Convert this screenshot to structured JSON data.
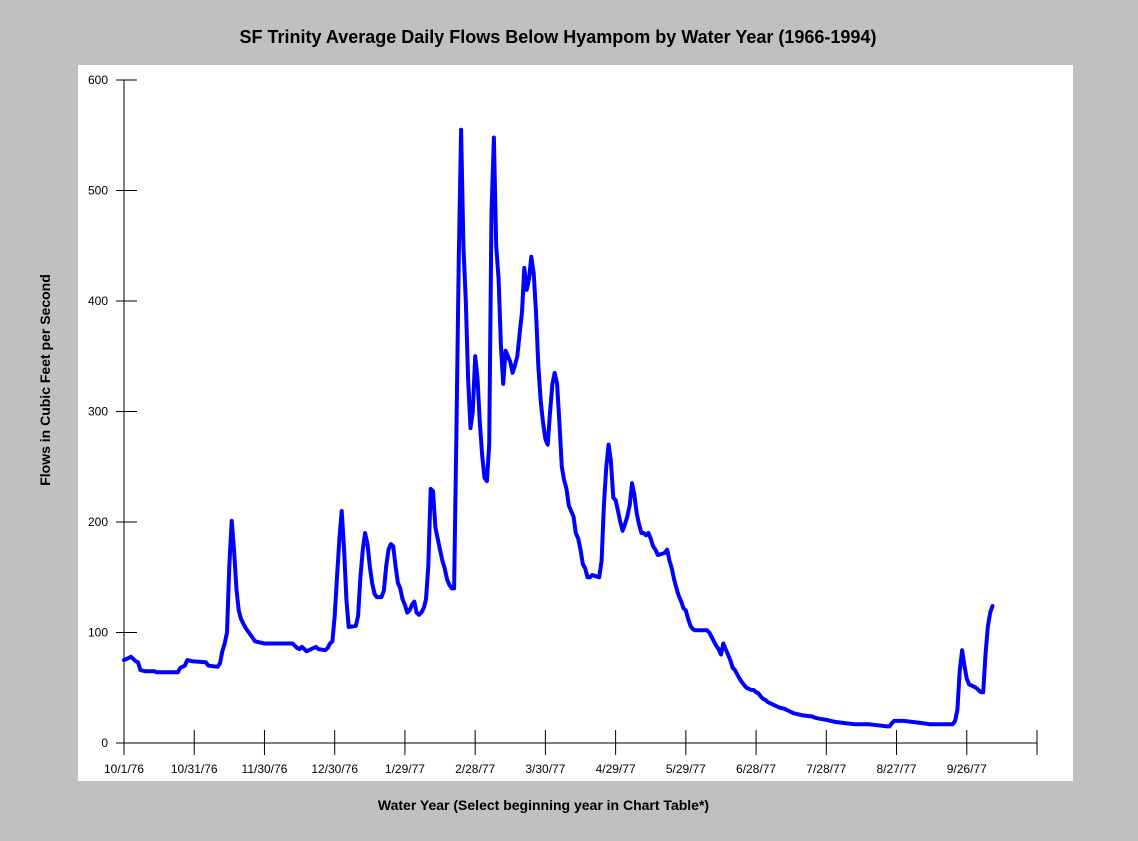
{
  "chart_data": {
    "type": "line",
    "title": "SF Trinity Average Daily Flows Below Hyampom by Water Year (1966-1994)",
    "xlabel": "Water Year (Select beginning year in Chart Table*)",
    "ylabel": "Flows in Cubic Feet per Second",
    "ylim": [
      0,
      600
    ],
    "xlim": [
      0,
      390
    ],
    "yticks": [
      0,
      100,
      200,
      300,
      400,
      500,
      600
    ],
    "xticks": [
      {
        "day": 0,
        "label": "10/1/76"
      },
      {
        "day": 30,
        "label": "10/31/76"
      },
      {
        "day": 60,
        "label": "11/30/76"
      },
      {
        "day": 90,
        "label": "12/30/76"
      },
      {
        "day": 120,
        "label": "1/29/77"
      },
      {
        "day": 150,
        "label": "2/28/77"
      },
      {
        "day": 180,
        "label": "3/30/77"
      },
      {
        "day": 210,
        "label": "4/29/77"
      },
      {
        "day": 240,
        "label": "5/29/77"
      },
      {
        "day": 270,
        "label": "6/28/77"
      },
      {
        "day": 300,
        "label": "7/28/77"
      },
      {
        "day": 330,
        "label": "8/27/77"
      },
      {
        "day": 360,
        "label": "9/26/77"
      },
      {
        "day": 390,
        "label": ""
      }
    ],
    "grid": false,
    "series": [
      {
        "color": "#0000ff",
        "points": [
          [
            0,
            75
          ],
          [
            2,
            77
          ],
          [
            3,
            78
          ],
          [
            5,
            74
          ],
          [
            6,
            73
          ],
          [
            7,
            66
          ],
          [
            9,
            65
          ],
          [
            13,
            65
          ],
          [
            14,
            64
          ],
          [
            16,
            64
          ],
          [
            23,
            64
          ],
          [
            24,
            68
          ],
          [
            26,
            70
          ],
          [
            27,
            75
          ],
          [
            29,
            74
          ],
          [
            35,
            73
          ],
          [
            36,
            70
          ],
          [
            40,
            69
          ],
          [
            41,
            72
          ],
          [
            42,
            83
          ],
          [
            43,
            90
          ],
          [
            44,
            100
          ],
          [
            45,
            160
          ],
          [
            46,
            201
          ],
          [
            47,
            175
          ],
          [
            48,
            140
          ],
          [
            49,
            120
          ],
          [
            50,
            112
          ],
          [
            51,
            108
          ],
          [
            52,
            104
          ],
          [
            54,
            98
          ],
          [
            55,
            95
          ],
          [
            56,
            92
          ],
          [
            58,
            91
          ],
          [
            60,
            90
          ],
          [
            64,
            90
          ],
          [
            72,
            90
          ],
          [
            73,
            88
          ],
          [
            74,
            86
          ],
          [
            75,
            85
          ],
          [
            76,
            87
          ],
          [
            77,
            85
          ],
          [
            78,
            83
          ],
          [
            79,
            84
          ],
          [
            81,
            86
          ],
          [
            82,
            87
          ],
          [
            83,
            85
          ],
          [
            86,
            84
          ],
          [
            87,
            86
          ],
          [
            88,
            90
          ],
          [
            89,
            92
          ],
          [
            90,
            115
          ],
          [
            91,
            150
          ],
          [
            92,
            185
          ],
          [
            93,
            210
          ],
          [
            94,
            175
          ],
          [
            95,
            130
          ],
          [
            96,
            105
          ],
          [
            99,
            106
          ],
          [
            100,
            115
          ],
          [
            101,
            150
          ],
          [
            102,
            175
          ],
          [
            103,
            190
          ],
          [
            104,
            180
          ],
          [
            105,
            160
          ],
          [
            106,
            145
          ],
          [
            107,
            135
          ],
          [
            108,
            132
          ],
          [
            110,
            132
          ],
          [
            111,
            138
          ],
          [
            112,
            160
          ],
          [
            113,
            175
          ],
          [
            114,
            180
          ],
          [
            115,
            178
          ],
          [
            116,
            160
          ],
          [
            117,
            145
          ],
          [
            118,
            140
          ],
          [
            119,
            130
          ],
          [
            120,
            125
          ],
          [
            121,
            118
          ],
          [
            122,
            120
          ],
          [
            123,
            125
          ],
          [
            124,
            128
          ],
          [
            125,
            118
          ],
          [
            126,
            116
          ],
          [
            127,
            118
          ],
          [
            128,
            122
          ],
          [
            129,
            130
          ],
          [
            130,
            160
          ],
          [
            131,
            230
          ],
          [
            132,
            228
          ],
          [
            133,
            195
          ],
          [
            134,
            185
          ],
          [
            135,
            175
          ],
          [
            136,
            165
          ],
          [
            137,
            158
          ],
          [
            138,
            148
          ],
          [
            139,
            143
          ],
          [
            140,
            140
          ],
          [
            141,
            140
          ],
          [
            142,
            280
          ],
          [
            143,
            440
          ],
          [
            144,
            555
          ],
          [
            145,
            450
          ],
          [
            146,
            400
          ],
          [
            147,
            330
          ],
          [
            148,
            285
          ],
          [
            149,
            300
          ],
          [
            150,
            350
          ],
          [
            151,
            330
          ],
          [
            152,
            290
          ],
          [
            153,
            260
          ],
          [
            154,
            240
          ],
          [
            155,
            237
          ],
          [
            156,
            270
          ],
          [
            157,
            480
          ],
          [
            158,
            548
          ],
          [
            159,
            450
          ],
          [
            160,
            420
          ],
          [
            161,
            360
          ],
          [
            162,
            325
          ],
          [
            163,
            355
          ],
          [
            164,
            350
          ],
          [
            165,
            345
          ],
          [
            166,
            335
          ],
          [
            167,
            342
          ],
          [
            168,
            350
          ],
          [
            169,
            370
          ],
          [
            170,
            390
          ],
          [
            171,
            430
          ],
          [
            172,
            410
          ],
          [
            173,
            420
          ],
          [
            174,
            440
          ],
          [
            175,
            425
          ],
          [
            176,
            390
          ],
          [
            177,
            340
          ],
          [
            178,
            310
          ],
          [
            179,
            290
          ],
          [
            180,
            275
          ],
          [
            181,
            270
          ],
          [
            182,
            300
          ],
          [
            183,
            325
          ],
          [
            184,
            335
          ],
          [
            185,
            325
          ],
          [
            186,
            290
          ],
          [
            187,
            250
          ],
          [
            188,
            238
          ],
          [
            189,
            230
          ],
          [
            190,
            215
          ],
          [
            191,
            210
          ],
          [
            192,
            205
          ],
          [
            193,
            190
          ],
          [
            194,
            185
          ],
          [
            195,
            175
          ],
          [
            196,
            162
          ],
          [
            197,
            158
          ],
          [
            198,
            150
          ],
          [
            199,
            150
          ],
          [
            200,
            152
          ],
          [
            203,
            150
          ],
          [
            204,
            165
          ],
          [
            205,
            215
          ],
          [
            206,
            250
          ],
          [
            207,
            270
          ],
          [
            208,
            255
          ],
          [
            209,
            222
          ],
          [
            210,
            220
          ],
          [
            211,
            210
          ],
          [
            212,
            200
          ],
          [
            213,
            192
          ],
          [
            214,
            198
          ],
          [
            215,
            205
          ],
          [
            216,
            215
          ],
          [
            217,
            235
          ],
          [
            218,
            225
          ],
          [
            219,
            208
          ],
          [
            220,
            198
          ],
          [
            221,
            190
          ],
          [
            222,
            190
          ],
          [
            223,
            188
          ],
          [
            224,
            190
          ],
          [
            225,
            185
          ],
          [
            226,
            178
          ],
          [
            227,
            175
          ],
          [
            228,
            170
          ],
          [
            231,
            172
          ],
          [
            232,
            175
          ],
          [
            233,
            165
          ],
          [
            234,
            158
          ],
          [
            235,
            148
          ],
          [
            236,
            140
          ],
          [
            237,
            133
          ],
          [
            238,
            128
          ],
          [
            239,
            122
          ],
          [
            240,
            120
          ],
          [
            241,
            112
          ],
          [
            242,
            106
          ],
          [
            243,
            103
          ],
          [
            244,
            102
          ],
          [
            249,
            102
          ],
          [
            250,
            100
          ],
          [
            251,
            96
          ],
          [
            252,
            92
          ],
          [
            253,
            88
          ],
          [
            254,
            85
          ],
          [
            255,
            80
          ],
          [
            256,
            90
          ],
          [
            257,
            85
          ],
          [
            258,
            80
          ],
          [
            259,
            75
          ],
          [
            260,
            68
          ],
          [
            261,
            66
          ],
          [
            262,
            62
          ],
          [
            263,
            58
          ],
          [
            264,
            55
          ],
          [
            265,
            52
          ],
          [
            266,
            50
          ],
          [
            267,
            49
          ],
          [
            268,
            48
          ],
          [
            269,
            48
          ],
          [
            270,
            46
          ],
          [
            271,
            45
          ],
          [
            272,
            42
          ],
          [
            273,
            40
          ],
          [
            274,
            39
          ],
          [
            275,
            37
          ],
          [
            276,
            36
          ],
          [
            277,
            35
          ],
          [
            278,
            34
          ],
          [
            279,
            33
          ],
          [
            280,
            32
          ],
          [
            282,
            31
          ],
          [
            284,
            29
          ],
          [
            286,
            27
          ],
          [
            288,
            26
          ],
          [
            290,
            25
          ],
          [
            294,
            24
          ],
          [
            295,
            23
          ],
          [
            297,
            22
          ],
          [
            300,
            21
          ],
          [
            302,
            20
          ],
          [
            304,
            19
          ],
          [
            308,
            18
          ],
          [
            312,
            17
          ],
          [
            318,
            17
          ],
          [
            322,
            16
          ],
          [
            326,
            15
          ],
          [
            327,
            15
          ],
          [
            328,
            18
          ],
          [
            329,
            20
          ],
          [
            333,
            20
          ],
          [
            337,
            19
          ],
          [
            341,
            18
          ],
          [
            344,
            17
          ],
          [
            354,
            17
          ],
          [
            355,
            20
          ],
          [
            356,
            30
          ],
          [
            357,
            65
          ],
          [
            358,
            84
          ],
          [
            359,
            70
          ],
          [
            360,
            58
          ],
          [
            361,
            53
          ],
          [
            363,
            51
          ],
          [
            364,
            50
          ],
          [
            365,
            48
          ],
          [
            366,
            46
          ],
          [
            367,
            46
          ],
          [
            368,
            80
          ],
          [
            369,
            105
          ],
          [
            370,
            118
          ],
          [
            371,
            124
          ]
        ]
      }
    ]
  }
}
